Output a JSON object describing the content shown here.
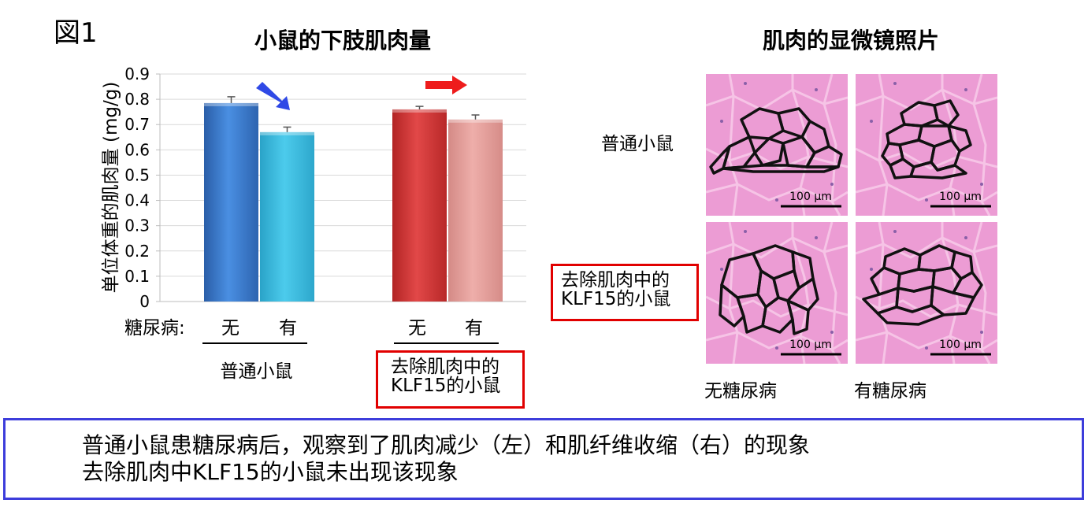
{
  "figure_label": "図1",
  "left_title": "小鼠的下肢肌肉量",
  "right_title": "肌肉的显微镜照片",
  "chart_data": {
    "type": "bar",
    "title": "小鼠的下肢肌肉量",
    "ylabel": "单位体重的肌肉量 (mg/g)",
    "ylim": [
      0,
      0.9
    ],
    "yticks": [
      "0",
      "0.1",
      "0.2",
      "0.3",
      "0.4",
      "0.5",
      "0.6",
      "0.7",
      "0.8",
      "0.9"
    ],
    "grid": true,
    "xrow_label": "糖尿病:",
    "categories": [
      "无",
      "有",
      "无",
      "有"
    ],
    "groups": [
      "普通小鼠",
      "去除肌肉中的KLF15的小鼠"
    ],
    "values": [
      0.785,
      0.67,
      0.76,
      0.72
    ],
    "errors": [
      0.025,
      0.02,
      0.012,
      0.018
    ],
    "colors": [
      "#3d7fd4",
      "#39bde0",
      "#d83a3a",
      "#e8a09c"
    ],
    "arrows": [
      {
        "direction": "down-right",
        "color": "#2f49e6"
      },
      {
        "direction": "right",
        "color": "#ee1c1c"
      }
    ]
  },
  "micrographs": {
    "row_labels": [
      "普通小鼠",
      "去除肌肉中的KLF15的小鼠"
    ],
    "col_labels": [
      "无糖尿病",
      "有糖尿病"
    ],
    "scale_bar": "100 μm",
    "tissue_color": "#ec9cd4",
    "outline_color": "#111111"
  },
  "summary": {
    "line1": "普通小鼠患糖尿病后，观察到了肌肉减少（左）和肌纤维收缩（右）的现象",
    "line2": "去除肌肉中KLF15的小鼠未出现该现象"
  }
}
